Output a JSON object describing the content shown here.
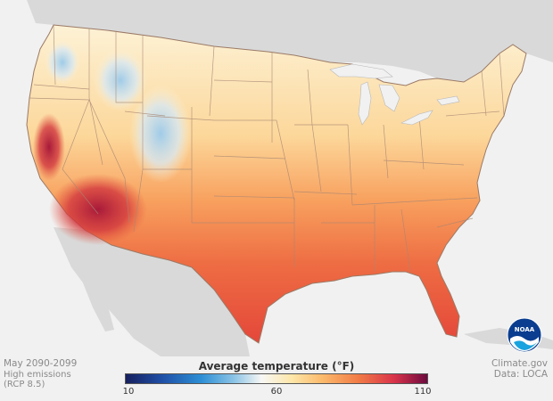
{
  "caption": {
    "period": "May 2090-2099",
    "scenario": "High emissions",
    "scenario_note": "(RCP 8.5)"
  },
  "credits": {
    "source": "Climate.gov",
    "data": "Data: LOCA"
  },
  "legend": {
    "title": "Average temperature (°F)",
    "unit": "°F",
    "min_label": "10",
    "mid_label": "60",
    "max_label": "110",
    "min_value": 10,
    "mid_value": 60,
    "max_value": 110,
    "color_stops": [
      "#17205e",
      "#1f4fa6",
      "#2d8fd5",
      "#8cc4e6",
      "#f7f7f5",
      "#fde7a9",
      "#fbbb6d",
      "#f17c46",
      "#d9334a",
      "#6d0a3e"
    ]
  },
  "logo": {
    "text": "NOAA",
    "name": "noaa-logo"
  },
  "map": {
    "land_background": "#d9d9d9",
    "ocean_background": "#f1f1f1",
    "state_border_color": "#9b7a66"
  }
}
